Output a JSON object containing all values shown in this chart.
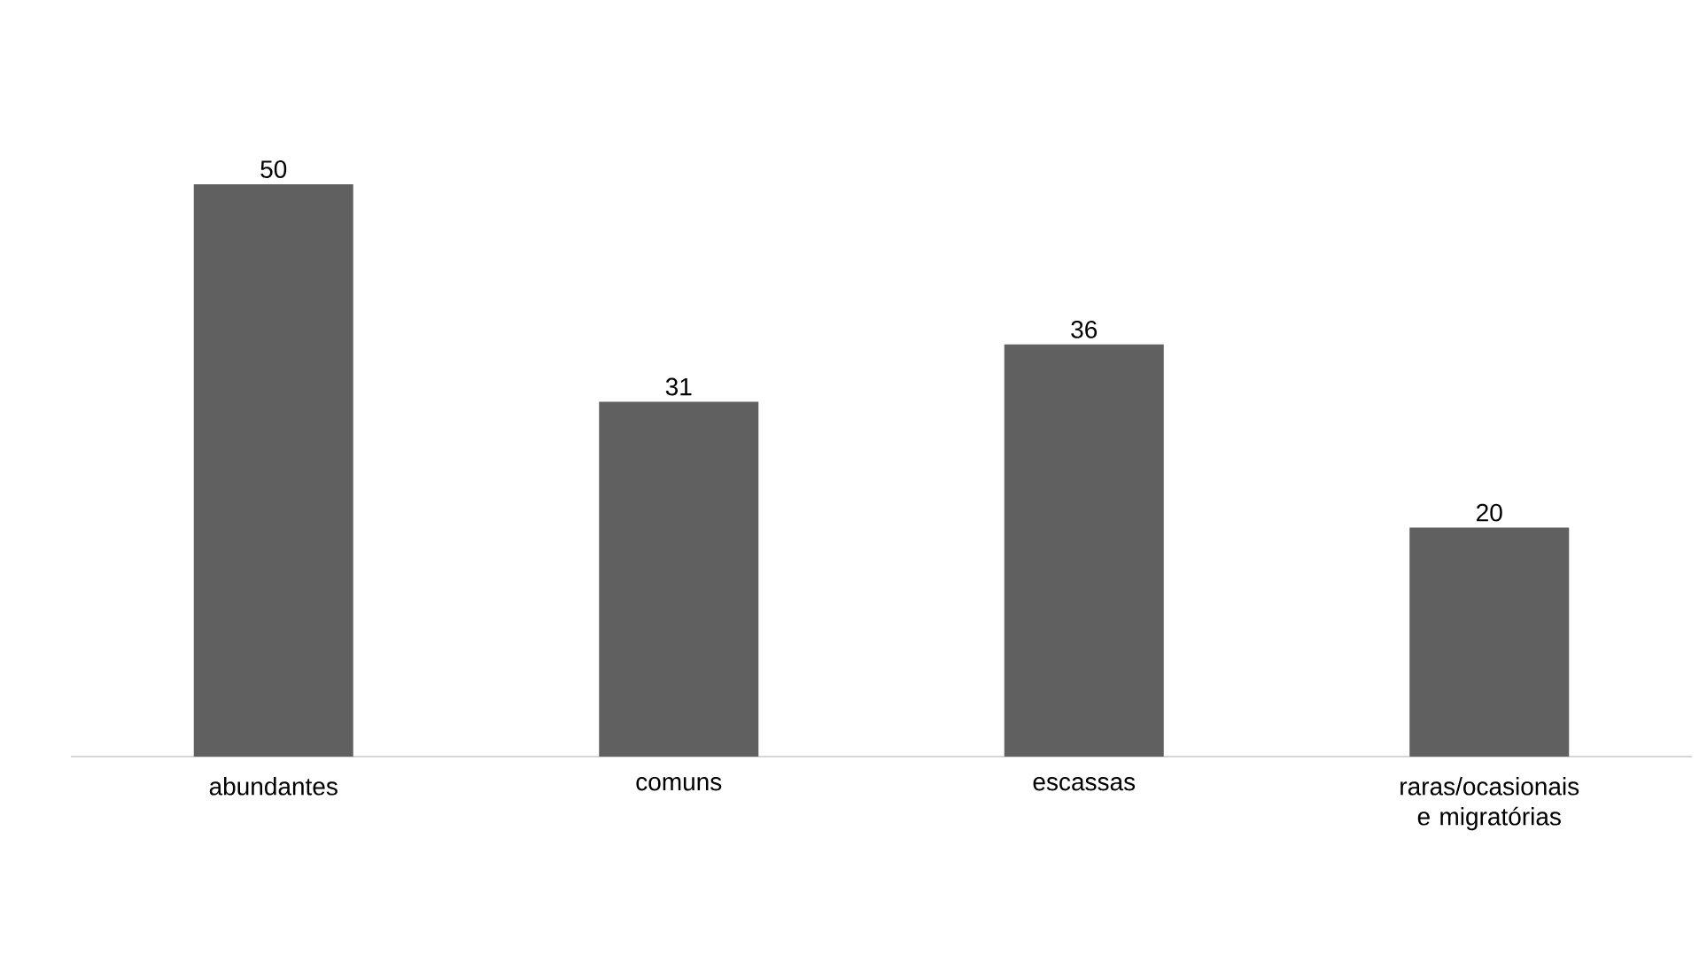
{
  "chart_data": {
    "type": "bar",
    "categories": [
      "abundantes",
      "comuns",
      "escassas",
      "raras/ocasionais e migratórias"
    ],
    "values": [
      50,
      31,
      36,
      20
    ],
    "color": "#606060",
    "data_labels": true
  }
}
